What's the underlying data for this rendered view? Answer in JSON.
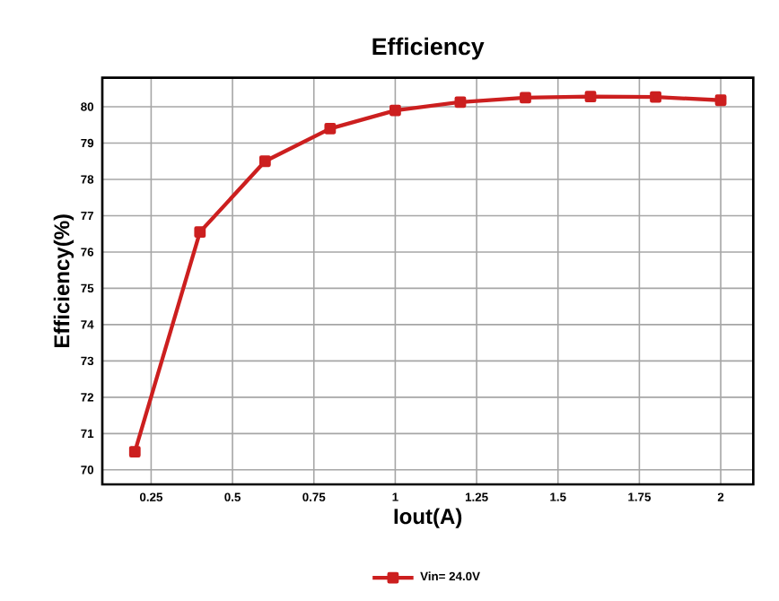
{
  "chart_data": {
    "type": "line",
    "title": "Efficiency",
    "xlabel": "Iout(A)",
    "ylabel": "Efficiency(%)",
    "x": [
      0.2,
      0.4,
      0.6,
      0.8,
      1.0,
      1.2,
      1.4,
      1.6,
      1.8,
      2.0
    ],
    "series": [
      {
        "name": "Vin= 24.0V",
        "color": "#cc1f1f",
        "values": [
          70.5,
          76.55,
          78.5,
          79.4,
          79.9,
          80.13,
          80.25,
          80.28,
          80.27,
          80.18
        ]
      }
    ],
    "xlim": [
      0.1,
      2.1
    ],
    "xticks": [
      0.25,
      0.5,
      0.75,
      1,
      1.25,
      1.5,
      1.75,
      2
    ],
    "ylim": [
      69.6,
      80.8
    ],
    "yticks": [
      70,
      71,
      72,
      73,
      74,
      75,
      76,
      77,
      78,
      79,
      80
    ],
    "grid": true,
    "legend": "bottom",
    "marker": "square",
    "line_style": "solid"
  }
}
